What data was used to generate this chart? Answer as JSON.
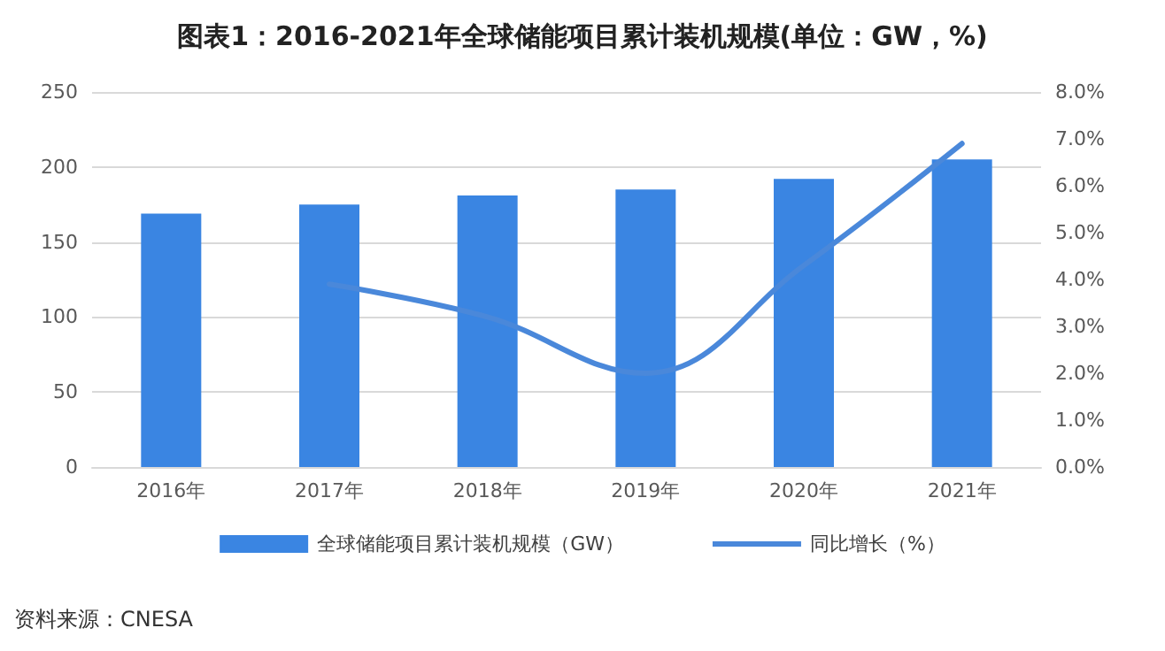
{
  "chart_data": {
    "type": "bar",
    "title": "图表1：2016-2021年全球储能项目累计装机规模(单位：GW，%)",
    "categories": [
      "2016年",
      "2017年",
      "2018年",
      "2019年",
      "2020年",
      "2021年"
    ],
    "series": [
      {
        "name": "全球储能项目累计装机规模（GW）",
        "color": "#3a85e2",
        "values": [
          169,
          175,
          181,
          185,
          192,
          205
        ]
      },
      {
        "name": "同比增长（%）",
        "type": "line",
        "axis": "y2",
        "color": "#4a88da",
        "values": [
          null,
          3.9,
          3.2,
          2.0,
          4.3,
          6.9
        ]
      }
    ],
    "ylim": [
      0,
      250
    ],
    "yticks": [
      0,
      50,
      100,
      150,
      200,
      250
    ],
    "y2lim": [
      0,
      8
    ],
    "y2ticks": [
      {
        "value": 0,
        "label": "0.0%"
      },
      {
        "value": 1,
        "label": "1.0%"
      },
      {
        "value": 2,
        "label": "2.0%"
      },
      {
        "value": 3,
        "label": "3.0%"
      },
      {
        "value": 4,
        "label": "4.0%"
      },
      {
        "value": 5,
        "label": "5.0%"
      },
      {
        "value": 6,
        "label": "6.0%"
      },
      {
        "value": 7,
        "label": "7.0%"
      },
      {
        "value": 8,
        "label": "8.0%"
      }
    ],
    "grid": "y",
    "legend": "bottom",
    "marker": "none",
    "line_style": "solid",
    "annotations": [
      "资料来源：CNESA"
    ]
  }
}
